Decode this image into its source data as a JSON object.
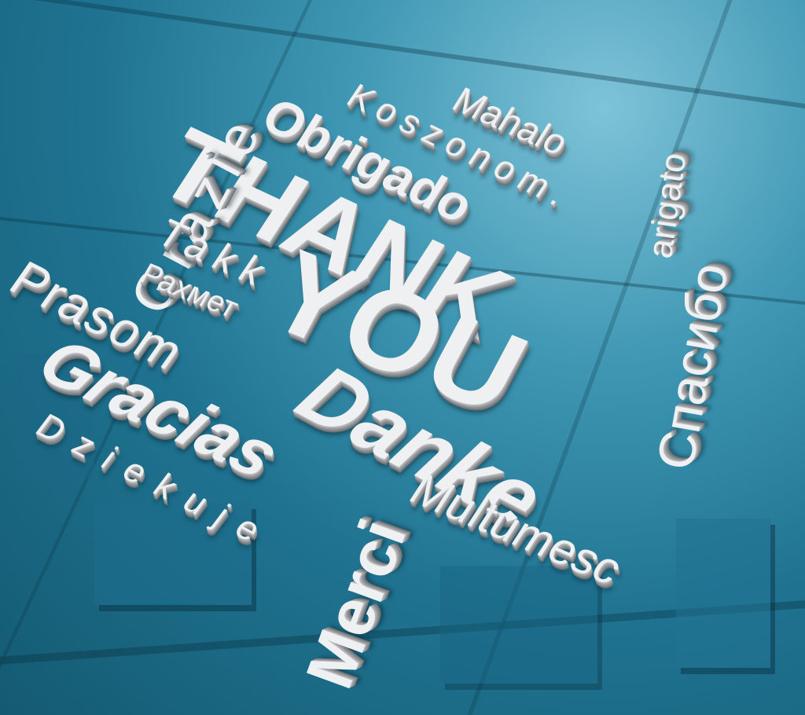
{
  "words": {
    "thank": "THANK",
    "you": "YOU",
    "obrigado": "Obrigado",
    "koszonom": "Koszonom.",
    "mahalo": "Mahalo",
    "arigato": "arigato",
    "spasibo": "Спасибо",
    "grazie": "Grazie",
    "takk": "Takk",
    "rakhmet": "Рахмет",
    "prasom": "Prasom",
    "gracias": "Gracias",
    "danke": "Danke",
    "dziekuje": "Dziekuje",
    "merci": "Merci",
    "multumesc": "Multumesc"
  },
  "colors": {
    "background": "#1f7391",
    "letters": "#eef0f1"
  }
}
